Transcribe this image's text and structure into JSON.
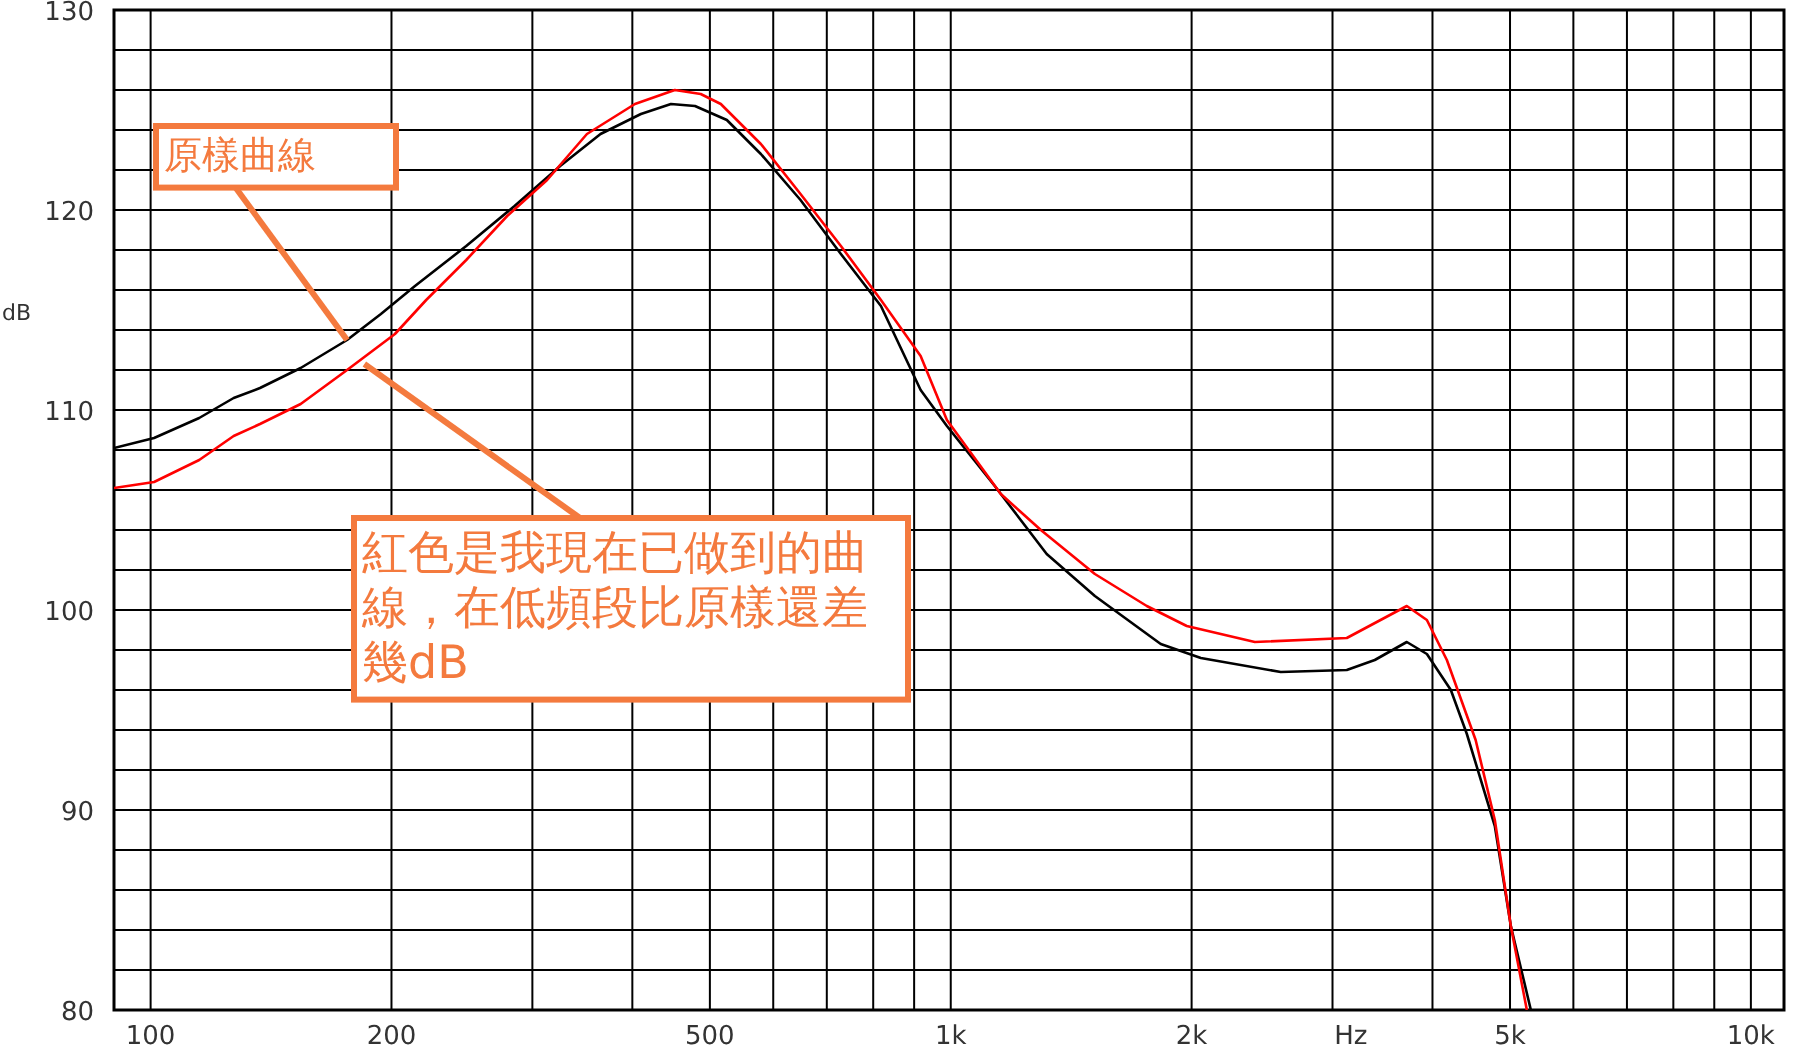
{
  "chart_data": {
    "type": "line",
    "xlabel": "Hz",
    "ylabel": "dB",
    "log": "x",
    "grid": true,
    "xlim": [
      90,
      11000
    ],
    "ylim": [
      80,
      130
    ],
    "xticks": [
      100,
      200,
      500,
      {
        "value": 1000,
        "label": "1k"
      },
      {
        "value": 2000,
        "label": "2k"
      },
      {
        "value": 5000,
        "label": "5k"
      },
      {
        "value": 10000,
        "label": "10k"
      }
    ],
    "yticks": [
      80,
      90,
      100,
      110,
      120,
      130
    ],
    "series": [
      {
        "color": "#000000",
        "x": [
          90,
          101,
          115,
          127,
          137,
          154,
          176,
          194,
          214,
          248,
          285,
          325,
          365,
          410,
          447,
          479,
          525,
          579,
          649,
          729,
          818,
          917,
          989,
          1135,
          1223,
          1318,
          1514,
          1830,
          2054,
          2585,
          3126,
          3388,
          3715,
          3936,
          4217,
          4416,
          4786,
          5012,
          5309
        ],
        "values": [
          108.1,
          108.6,
          109.6,
          110.6,
          111.1,
          112.1,
          113.5,
          114.8,
          116.2,
          118.2,
          120.2,
          122.2,
          123.8,
          124.8,
          125.3,
          125.2,
          124.5,
          122.8,
          120.5,
          117.8,
          115.2,
          111,
          109.2,
          106.2,
          104.5,
          102.8,
          100.7,
          98.3,
          97.6,
          96.9,
          97,
          97.5,
          98.4,
          97.8,
          96,
          93.8,
          89.2,
          84.2,
          80
        ]
      },
      {
        "color": "#ff0000",
        "x": [
          90,
          101,
          115,
          127,
          137,
          154,
          176,
          202,
          221,
          248,
          279,
          313,
          351,
          403,
          452,
          487,
          516,
          579,
          649,
          729,
          818,
          917,
          989,
          1155,
          1296,
          1514,
          1758,
          1972,
          2399,
          3126,
          3715,
          3936,
          4169,
          4529,
          4786,
          5012,
          5248
        ],
        "values": [
          106.1,
          106.4,
          107.5,
          108.7,
          109.3,
          110.3,
          112,
          113.8,
          115.5,
          117.5,
          119.7,
          121.5,
          123.8,
          125.3,
          126,
          125.8,
          125.3,
          123.3,
          120.8,
          118.2,
          115.5,
          112.7,
          109.5,
          105.8,
          104,
          101.8,
          100.2,
          99.2,
          98.4,
          98.6,
          100.2,
          99.5,
          97.5,
          93.5,
          89.5,
          84.2,
          80
        ]
      }
    ],
    "annotations": [
      {
        "text": "原樣曲線",
        "x": 176,
        "y": 113.5
      },
      {
        "text": "紅色是我現在已做到的曲線，在低頻段比原樣還差幾dB",
        "x": 185,
        "y": 112.3
      }
    ]
  }
}
